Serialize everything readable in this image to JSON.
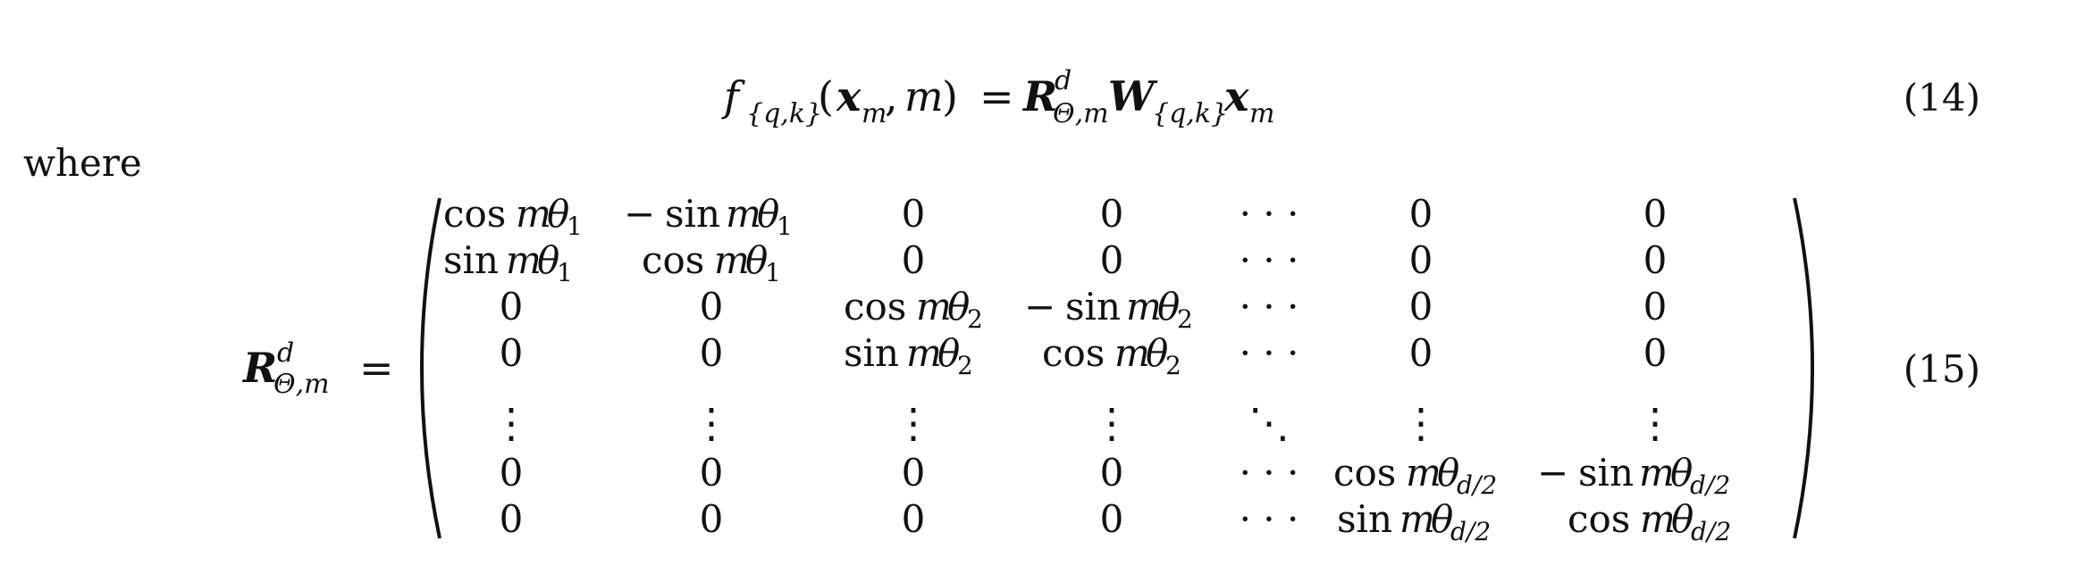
{
  "equations": [
    {
      "number": "(14)",
      "latex": "f_{\\{q,k\\}}(\\boldsymbol{x}_m, m) = \\boldsymbol{R}^d_{\\Theta,m}\\boldsymbol{W}_{\\{q,k\\}}\\boldsymbol{x}_m"
    },
    {
      "number": "(15)",
      "latex": "\\boldsymbol{R}^d_{\\Theta,m} = \\begin{pmatrix} \\cos m\\theta_1 & -\\sin m\\theta_1 & 0 & 0 & \\cdots & 0 & 0 \\\\ \\sin m\\theta_1 & \\cos m\\theta_1 & 0 & 0 & \\cdots & 0 & 0 \\\\ 0 & 0 & \\cos m\\theta_2 & -\\sin m\\theta_2 & \\cdots & 0 & 0 \\\\ 0 & 0 & \\sin m\\theta_2 & \\cos m\\theta_2 & \\cdots & 0 & 0 \\\\ \\vdots & \\vdots & \\vdots & \\vdots & \\ddots & \\vdots & \\vdots \\\\ 0 & 0 & 0 & 0 & \\cdots & \\cos m\\theta_{d/2} & -\\sin m\\theta_{d/2} \\\\ 0 & 0 & 0 & 0 & \\cdots & \\sin m\\theta_{d/2} & \\cos m\\theta_{d/2} \\end{pmatrix}"
    }
  ],
  "text": {
    "where": "where",
    "cos": "cos",
    "sin": "sin",
    "minus": "−",
    "zero": "0",
    "eq_sign": "=",
    "f": "f",
    "open_paren": "(",
    "close_paren": ")",
    "comma": ",",
    "bold_x": "x",
    "bold_R": "R",
    "bold_W": "W",
    "m": "m",
    "d": "d",
    "theta": "θ",
    "Theta_m": "Θ,m",
    "qk": "{q,k}",
    "sub_1": "1",
    "sub_2": "2",
    "sub_d2": "d/2",
    "cdots": "· · ·",
    "vdots": "⋮",
    "ddots": "⋱"
  }
}
